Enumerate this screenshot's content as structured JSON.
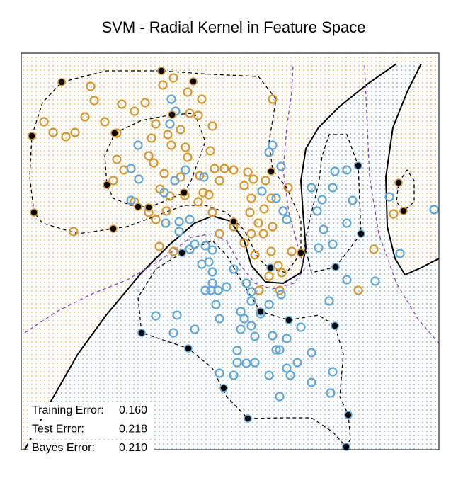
{
  "chart_data": {
    "type": "scatter",
    "title": "SVM - Radial Kernel in Feature Space",
    "xlim": [
      30,
      620
    ],
    "ylim": [
      635,
      75
    ],
    "region_colors": [
      "#e3a24a",
      "#7fb8de"
    ],
    "series": [
      {
        "color": "#d9962f",
        "fill": "none",
        "x": [
          128,
          133,
          172,
          62,
          75,
          93,
          106,
          120,
          148,
          190,
          205,
          230,
          245,
          265,
          285,
          268,
          280,
          300,
          255,
          237,
          220,
          232,
          210,
          217,
          165,
          175,
          160,
          190,
          210,
          220,
          235,
          226,
          240,
          265,
          282,
          297,
          303,
          317,
          330,
          350,
          358,
          375,
          345,
          355,
          383,
          373,
          353,
          365,
          385,
          372,
          355,
          345,
          383,
          360,
          393,
          398,
          412,
          407,
          310,
          295,
          287,
          280,
          261,
          255,
          262,
          242,
          214,
          104,
          225,
          245,
          300,
          310,
          330,
          528,
          506,
          556,
          366,
          380,
          395,
          385,
          165
        ],
        "y": [
          122,
          142,
          147,
          172,
          187,
          193,
          187,
          165,
          172,
          157,
          145,
          120,
          110,
          130,
          140,
          160,
          163,
          178,
          183,
          190,
          175,
          245,
          220,
          230,
          225,
          240,
          255,
          285,
          300,
          310,
          298,
          267,
          277,
          222,
          248,
          213,
          238,
          238,
          240,
          243,
          253,
          255,
          262,
          280,
          280,
          295,
          300,
          315,
          320,
          330,
          330,
          343,
          355,
          360,
          375,
          385,
          355,
          265,
          255,
          275,
          272,
          285,
          276,
          250,
          208,
          205,
          195,
          327,
          348,
          355,
          300,
          330,
          320,
          352,
          410,
          302,
          410,
          390,
          410,
          140,
          188
        ]
      },
      {
        "color": "#5ea7dc",
        "fill": "none",
        "x": [
          242,
          248,
          240,
          195,
          185,
          196,
          185,
          232,
          247,
          262,
          288,
          234,
          253,
          268,
          253,
          268,
          275,
          290,
          300,
          285,
          295,
          300,
          290,
          298,
          308,
          320,
          305,
          300,
          330,
          348,
          355,
          355,
          340,
          345,
          355,
          368,
          380,
          397,
          380,
          385,
          397,
          370,
          390,
          400,
          405,
          440,
          448,
          470,
          473,
          455,
          470,
          490,
          498,
          490,
          550,
          565,
          613,
          530,
          490,
          450,
          457,
          220,
          250,
          245,
          275,
          310,
          340,
          360,
          385,
          405,
          425,
          440,
          420,
          405,
          390,
          395,
          335,
          335,
          348,
          360,
          380,
          410,
          330,
          310,
          440,
          467,
          470,
          395,
          465
        ],
        "y": [
          140,
          157,
          175,
          205,
          238,
          253,
          283,
          272,
          255,
          240,
          250,
          315,
          313,
          310,
          327,
          352,
          345,
          347,
          353,
          373,
          370,
          384,
          410,
          410,
          410,
          405,
          430,
          400,
          380,
          400,
          412,
          425,
          440,
          450,
          460,
          443,
          430,
          416,
          215,
          205,
          235,
          270,
          280,
          298,
          310,
          265,
          298,
          265,
          242,
          282,
          345,
          315,
          283,
          240,
          278,
          358,
          296,
          397,
          395,
          350,
          324,
          446,
          445,
          470,
          465,
          450,
          465,
          475,
          474,
          478,
          462,
          498,
          512,
          520,
          494,
          494,
          495,
          512,
          513,
          512,
          530,
          530,
          530,
          527,
          540,
          555,
          525,
          560,
          425
        ]
      },
      {
        "color": "#d9962f",
        "fill": "#000000",
        "x": [
          87,
          228,
          273,
          243,
          162,
          45,
          48,
          151,
          160,
          195,
          210,
          260,
          330,
          383,
          425,
          563,
          570
        ],
        "y": [
          116,
          100,
          115,
          162,
          188,
          192,
          300,
          261,
          323,
          292,
          293,
          272,
          313,
          242,
          357,
          258,
          298
        ]
      },
      {
        "color": "#5ea7dc",
        "fill": "#000000",
        "x": [
          382,
          257,
          506,
          510,
          474,
          368,
          408,
          473,
          200,
          266,
          316,
          350,
          492,
          489
        ],
        "y": [
          378,
          357,
          234,
          330,
          377,
          440,
          452,
          460,
          470,
          492,
          548,
          591,
          586,
          631
        ]
      }
    ],
    "curves": [
      {
        "color": "#000000",
        "dash": false,
        "closed": false,
        "x": [
          35,
          70,
          110,
          150,
          200,
          240,
          275,
          300,
          325,
          345,
          355,
          375,
          400,
          425,
          432,
          428,
          425,
          432,
          450,
          480,
          520,
          560
        ],
        "y": [
          635,
          570,
          500,
          445,
          385,
          345,
          315,
          305,
          312,
          340,
          375,
          398,
          400,
          385,
          350,
          300,
          255,
          210,
          180,
          150,
          118,
          90
        ]
      },
      {
        "color": "#000000",
        "dash": false,
        "closed": false,
        "x": [
          595,
          575,
          555,
          545,
          547,
          558,
          572,
          595,
          620
        ],
        "y": [
          90,
          130,
          180,
          250,
          320,
          365,
          388,
          378,
          365
        ]
      },
      {
        "color": "#8a3fd9",
        "dash": true,
        "closed": false,
        "x": [
          35,
          80,
          130,
          180,
          230,
          270,
          300,
          320,
          340,
          360,
          385,
          415,
          430,
          420,
          408,
          400,
          405,
          412,
          414
        ],
        "y": [
          470,
          440,
          415,
          395,
          365,
          335,
          330,
          340,
          375,
          400,
          408,
          400,
          380,
          345,
          300,
          240,
          180,
          130,
          92
        ]
      },
      {
        "color": "#8a3fd9",
        "dash": true,
        "closed": false,
        "x": [
          515,
          518,
          522,
          535,
          560,
          590,
          620
        ],
        "y": [
          92,
          160,
          250,
          330,
          400,
          450,
          485
        ]
      },
      {
        "color": "#000000",
        "dash": true,
        "closed": true,
        "x": [
          45,
          60,
          87,
          150,
          228,
          300,
          365,
          390,
          380,
          385,
          405,
          425,
          425,
          405,
          382,
          365,
          345,
          320,
          290,
          260,
          220,
          180,
          160,
          110,
          60,
          48,
          42
        ],
        "y": [
          192,
          145,
          116,
          100,
          100,
          105,
          108,
          140,
          200,
          240,
          265,
          310,
          357,
          385,
          380,
          365,
          325,
          300,
          290,
          290,
          305,
          320,
          323,
          330,
          315,
          300,
          250
        ]
      },
      {
        "color": "#000000",
        "dash": true,
        "closed": true,
        "x": [
          162,
          200,
          243,
          275,
          290,
          270,
          260,
          230,
          210,
          185,
          160,
          151,
          148
        ],
        "y": [
          188,
          170,
          162,
          160,
          200,
          255,
          272,
          285,
          293,
          290,
          280,
          261,
          220
        ]
      },
      {
        "color": "#000000",
        "dash": true,
        "closed": true,
        "x": [
          200,
          195,
          220,
          257,
          300,
          320,
          340,
          368,
          408,
          450,
          473,
          485,
          480,
          492,
          495,
          489,
          470,
          440,
          400,
          350,
          320,
          300,
          266,
          230
        ],
        "y": [
          470,
          420,
          380,
          357,
          340,
          360,
          395,
          440,
          452,
          445,
          460,
          500,
          560,
          586,
          620,
          631,
          610,
          590,
          590,
          591,
          560,
          520,
          492,
          480
        ]
      },
      {
        "color": "#000000",
        "dash": true,
        "closed": true,
        "x": [
          474,
          510,
          506,
          490,
          465,
          455,
          450,
          440,
          430,
          440
        ],
        "y": [
          377,
          330,
          234,
          190,
          190,
          220,
          260,
          300,
          345,
          385
        ]
      },
      {
        "color": "#000000",
        "dash": true,
        "closed": true,
        "x": [
          563,
          575,
          585,
          585,
          570,
          560
        ],
        "y": [
          258,
          240,
          255,
          285,
          298,
          285
        ]
      }
    ],
    "errors": [
      {
        "label": "Training Error:",
        "value": "0.160"
      },
      {
        "label": "Test Error:",
        "value": "0.218"
      },
      {
        "label": "Bayes Error:",
        "value": "0.210"
      }
    ]
  }
}
